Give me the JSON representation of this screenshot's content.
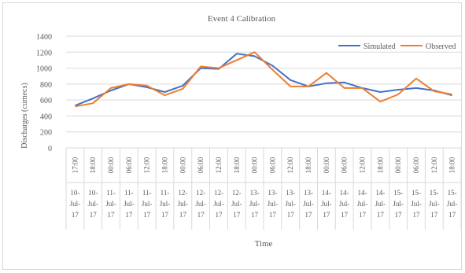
{
  "chart_data": {
    "type": "line",
    "title": "Event 4 Calibration",
    "xlabel": "Time",
    "ylabel": "Discharges (cumecs)",
    "ylim": [
      0,
      1400
    ],
    "yticks": [
      0,
      200,
      400,
      600,
      800,
      1000,
      1200,
      1400
    ],
    "grid": true,
    "legend": "top-right",
    "categories": [
      {
        "time": "17:00",
        "date": [
          "10-",
          "Jul-",
          "17"
        ]
      },
      {
        "time": "18:00",
        "date": [
          "10-",
          "Jul-",
          "17"
        ]
      },
      {
        "time": "00:00",
        "date": [
          "11-",
          "Jul-",
          "17"
        ]
      },
      {
        "time": "06:00",
        "date": [
          "11-",
          "Jul-",
          "17"
        ]
      },
      {
        "time": "12:00",
        "date": [
          "11-",
          "Jul-",
          "17"
        ]
      },
      {
        "time": "18:00",
        "date": [
          "11-",
          "Jul-",
          "17"
        ]
      },
      {
        "time": "00:00",
        "date": [
          "12-",
          "Jul-",
          "17"
        ]
      },
      {
        "time": "06:00",
        "date": [
          "12-",
          "Jul-",
          "17"
        ]
      },
      {
        "time": "12:00",
        "date": [
          "12-",
          "Jul-",
          "17"
        ]
      },
      {
        "time": "18:00",
        "date": [
          "12-",
          "Jul-",
          "17"
        ]
      },
      {
        "time": "00:00",
        "date": [
          "13-",
          "Jul-",
          "17"
        ]
      },
      {
        "time": "06:00",
        "date": [
          "13-",
          "Jul-",
          "17"
        ]
      },
      {
        "time": "12:00",
        "date": [
          "13-",
          "Jul-",
          "17"
        ]
      },
      {
        "time": "18:00",
        "date": [
          "13-",
          "Jul-",
          "17"
        ]
      },
      {
        "time": "00:00",
        "date": [
          "14-",
          "Jul-",
          "17"
        ]
      },
      {
        "time": "06:00",
        "date": [
          "14-",
          "Jul-",
          "17"
        ]
      },
      {
        "time": "12:00",
        "date": [
          "14-",
          "Jul-",
          "17"
        ]
      },
      {
        "time": "18:00",
        "date": [
          "14-",
          "Jul-",
          "17"
        ]
      },
      {
        "time": "00:00",
        "date": [
          "15-",
          "Jul-",
          "17"
        ]
      },
      {
        "time": "06:00",
        "date": [
          "15-",
          "Jul-",
          "17"
        ]
      },
      {
        "time": "12:00",
        "date": [
          "15-",
          "Jul-",
          "17"
        ]
      },
      {
        "time": "18:00",
        "date": [
          "15-",
          "Jul-",
          "17"
        ]
      }
    ],
    "series": [
      {
        "name": "Simulated",
        "color": "#4472C4",
        "values": [
          530,
          620,
          720,
          800,
          760,
          700,
          780,
          1000,
          990,
          1180,
          1150,
          1030,
          850,
          770,
          810,
          820,
          750,
          700,
          730,
          750,
          720,
          660
        ]
      },
      {
        "name": "Observed",
        "color": "#ED7D31",
        "values": [
          520,
          560,
          750,
          800,
          780,
          660,
          740,
          1020,
          1000,
          1100,
          1200,
          980,
          770,
          770,
          940,
          750,
          750,
          580,
          670,
          870,
          710,
          670
        ]
      }
    ]
  }
}
